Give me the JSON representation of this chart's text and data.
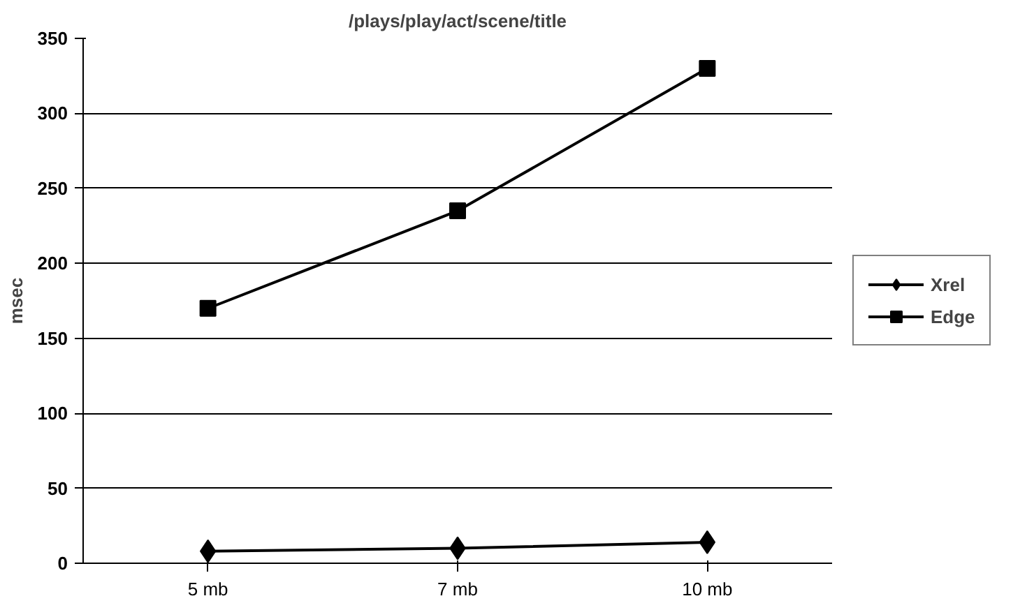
{
  "chart_data": {
    "type": "line",
    "title": "/plays/play/act/scene/title",
    "ylabel": "msec",
    "categories": [
      "5 mb",
      "7 mb",
      "10 mb"
    ],
    "series": [
      {
        "name": "Xrel",
        "color": "#000000",
        "marker": "diamond",
        "values": [
          8,
          10,
          14
        ]
      },
      {
        "name": "Edge",
        "color": "#000000",
        "marker": "square",
        "values": [
          170,
          235,
          330
        ]
      }
    ],
    "ylim": [
      0,
      350
    ],
    "yticks": [
      0,
      50,
      100,
      150,
      200,
      250,
      300,
      350
    ],
    "grid": "y",
    "legend": "right",
    "line_style": "solid"
  }
}
